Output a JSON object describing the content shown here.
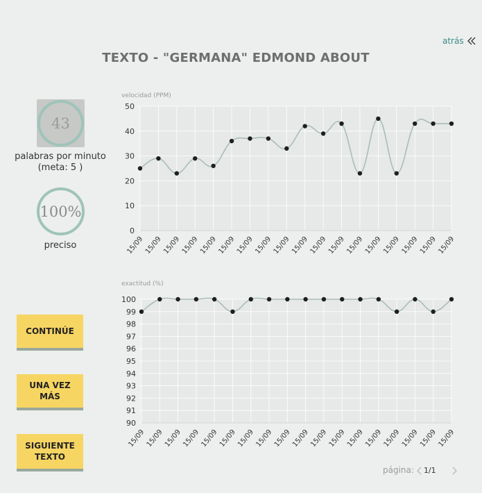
{
  "header": {
    "back_label": "atrás",
    "title": "TEXTO - \"GERMANA\" EDMOND ABOUT"
  },
  "stats": {
    "wpm_value": "43",
    "wpm_label": "palabras por minuto",
    "goal_label": "(meta: 5 )",
    "accuracy_value": "100%",
    "accuracy_label": "preciso"
  },
  "buttons": {
    "continue": "CONTINÚE",
    "again": "UNA VEZ MÁS",
    "next": "SIGUIENTE TEXTO"
  },
  "pagination": {
    "label": "página:",
    "value": "1/1"
  },
  "colors": {
    "accent": "#3a8a87",
    "button": "#f7d563",
    "line": "#a9bdb6",
    "point": "#1f1f1f"
  },
  "chart_data": [
    {
      "type": "line",
      "title": "velocidad (PPM)",
      "categories": [
        "15/09",
        "15/09",
        "15/09",
        "15/09",
        "15/09",
        "15/09",
        "15/09",
        "15/09",
        "15/09",
        "15/09",
        "15/09",
        "15/09",
        "15/09",
        "15/09",
        "15/09",
        "15/09",
        "15/09",
        "15/09"
      ],
      "values": [
        25,
        29,
        23,
        29,
        26,
        36,
        37,
        37,
        33,
        42,
        39,
        43,
        23,
        45,
        23,
        43,
        43,
        43
      ],
      "ylim": [
        0,
        50
      ],
      "yticks": [
        0,
        10,
        20,
        30,
        40,
        50
      ],
      "grid": true
    },
    {
      "type": "line",
      "title": "exactitud (%)",
      "categories": [
        "15/09",
        "15/09",
        "15/09",
        "15/09",
        "15/09",
        "15/09",
        "15/09",
        "15/09",
        "15/09",
        "15/09",
        "15/09",
        "15/09",
        "15/09",
        "15/09",
        "15/09",
        "15/09",
        "15/09",
        "15/09"
      ],
      "values": [
        99,
        100,
        100,
        100,
        100,
        99,
        100,
        100,
        100,
        100,
        100,
        100,
        100,
        100,
        99,
        100,
        99,
        100
      ],
      "ylim": [
        90,
        100
      ],
      "yticks": [
        90,
        91,
        92,
        93,
        94,
        95,
        96,
        97,
        98,
        99,
        100
      ],
      "grid": true
    }
  ]
}
